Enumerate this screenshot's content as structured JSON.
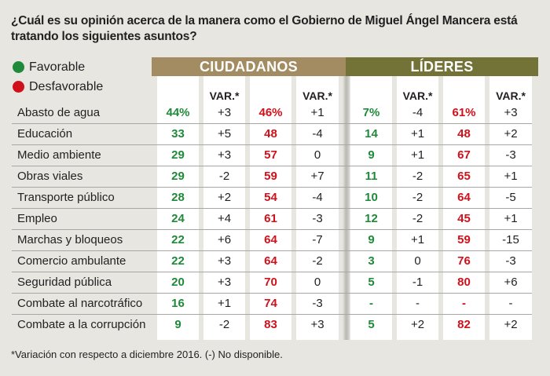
{
  "title": "¿Cuál es su opinión acerca de la manera como el Gobierno de Miguel Ángel Mancera está tratando los siguientes asuntos?",
  "legend": [
    {
      "label": "Favorable",
      "color": "#1e8a3a"
    },
    {
      "label": "Desfavorable",
      "color": "#d0111b"
    }
  ],
  "groups": [
    {
      "label": "CIUDADANOS",
      "color": "#a48c62"
    },
    {
      "label": "LÍDERES",
      "color": "#737237"
    }
  ],
  "var_header": "VAR.*",
  "colors": {
    "favorable": "#1e8a3a",
    "desfavorable": "#d0111b"
  },
  "rows": [
    {
      "label": "Abasto de agua",
      "c_fav": "44%",
      "c_fav_var": "+3",
      "c_desf": "46%",
      "c_desf_var": "+1",
      "l_fav": "7%",
      "l_fav_var": "-4",
      "l_desf": "61%",
      "l_desf_var": "+3"
    },
    {
      "label": "Educación",
      "c_fav": "33",
      "c_fav_var": "+5",
      "c_desf": "48",
      "c_desf_var": "-4",
      "l_fav": "14",
      "l_fav_var": "+1",
      "l_desf": "48",
      "l_desf_var": "+2"
    },
    {
      "label": "Medio ambiente",
      "c_fav": "29",
      "c_fav_var": "+3",
      "c_desf": "57",
      "c_desf_var": "0",
      "l_fav": "9",
      "l_fav_var": "+1",
      "l_desf": "67",
      "l_desf_var": "-3"
    },
    {
      "label": "Obras viales",
      "c_fav": "29",
      "c_fav_var": "-2",
      "c_desf": "59",
      "c_desf_var": "+7",
      "l_fav": "11",
      "l_fav_var": "-2",
      "l_desf": "65",
      "l_desf_var": "+1"
    },
    {
      "label": "Transporte público",
      "c_fav": "28",
      "c_fav_var": "+2",
      "c_desf": "54",
      "c_desf_var": "-4",
      "l_fav": "10",
      "l_fav_var": "-2",
      "l_desf": "64",
      "l_desf_var": "-5"
    },
    {
      "label": "Empleo",
      "c_fav": "24",
      "c_fav_var": "+4",
      "c_desf": "61",
      "c_desf_var": "-3",
      "l_fav": "12",
      "l_fav_var": "-2",
      "l_desf": "45",
      "l_desf_var": "+1"
    },
    {
      "label": "Marchas y bloqueos",
      "c_fav": "22",
      "c_fav_var": "+6",
      "c_desf": "64",
      "c_desf_var": "-7",
      "l_fav": "9",
      "l_fav_var": "+1",
      "l_desf": "59",
      "l_desf_var": "-15"
    },
    {
      "label": "Comercio ambulante",
      "c_fav": "22",
      "c_fav_var": "+3",
      "c_desf": "64",
      "c_desf_var": "-2",
      "l_fav": "3",
      "l_fav_var": "0",
      "l_desf": "76",
      "l_desf_var": "-3"
    },
    {
      "label": "Seguridad pública",
      "c_fav": "20",
      "c_fav_var": "+3",
      "c_desf": "70",
      "c_desf_var": "0",
      "l_fav": "5",
      "l_fav_var": "-1",
      "l_desf": "80",
      "l_desf_var": "+6"
    },
    {
      "label": "Combate al narcotráfico",
      "c_fav": "16",
      "c_fav_var": "+1",
      "c_desf": "74",
      "c_desf_var": "-3",
      "l_fav": "-",
      "l_fav_var": "-",
      "l_desf": "-",
      "l_desf_var": "-"
    },
    {
      "label": "Combate a la corrupción",
      "c_fav": "9",
      "c_fav_var": "-2",
      "c_desf": "83",
      "c_desf_var": "+3",
      "l_fav": "5",
      "l_fav_var": "+2",
      "l_desf": "82",
      "l_desf_var": "+2"
    }
  ],
  "footnote": "*Variación con respecto a diciembre 2016. (-) No disponible."
}
